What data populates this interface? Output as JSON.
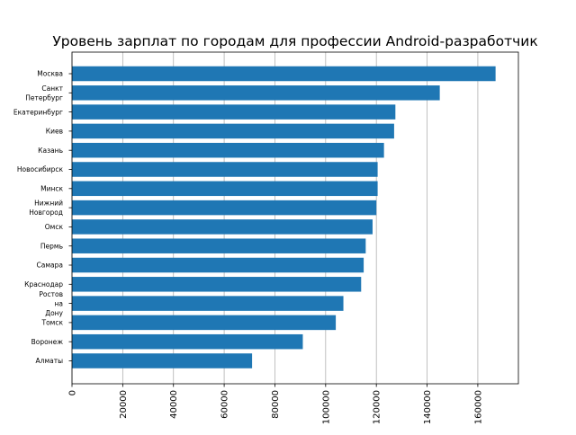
{
  "chart_data": {
    "type": "bar",
    "orientation": "horizontal",
    "title": "Уровень зарплат по городам для профессии Android-разработчик",
    "xlabel": "",
    "ylabel": "",
    "xlim": [
      0,
      176000
    ],
    "xticks": [
      0,
      20000,
      40000,
      60000,
      80000,
      100000,
      120000,
      140000,
      160000
    ],
    "xtick_rotation": "vertical",
    "grid": "x-axis vertical lines",
    "bar_color": "#1f77b4",
    "grid_color": "#b0b0b0",
    "categories": [
      [
        "Москва"
      ],
      [
        "Санкт",
        "Петербург"
      ],
      [
        "Екатеринбург"
      ],
      [
        "Киев"
      ],
      [
        "Казань"
      ],
      [
        "Новосибирск"
      ],
      [
        "Минск"
      ],
      [
        "Нижний",
        "Новгород"
      ],
      [
        "Омск"
      ],
      [
        "Пермь"
      ],
      [
        "Самара"
      ],
      [
        "Краснодар"
      ],
      [
        "Ростов",
        "на",
        "Дону"
      ],
      [
        "Томск"
      ],
      [
        "Воронеж"
      ],
      [
        "Алматы"
      ]
    ],
    "values": [
      167000,
      145000,
      127500,
      127000,
      123000,
      120500,
      120500,
      120000,
      118500,
      115800,
      115000,
      114000,
      107000,
      104000,
      91000,
      71000
    ]
  }
}
